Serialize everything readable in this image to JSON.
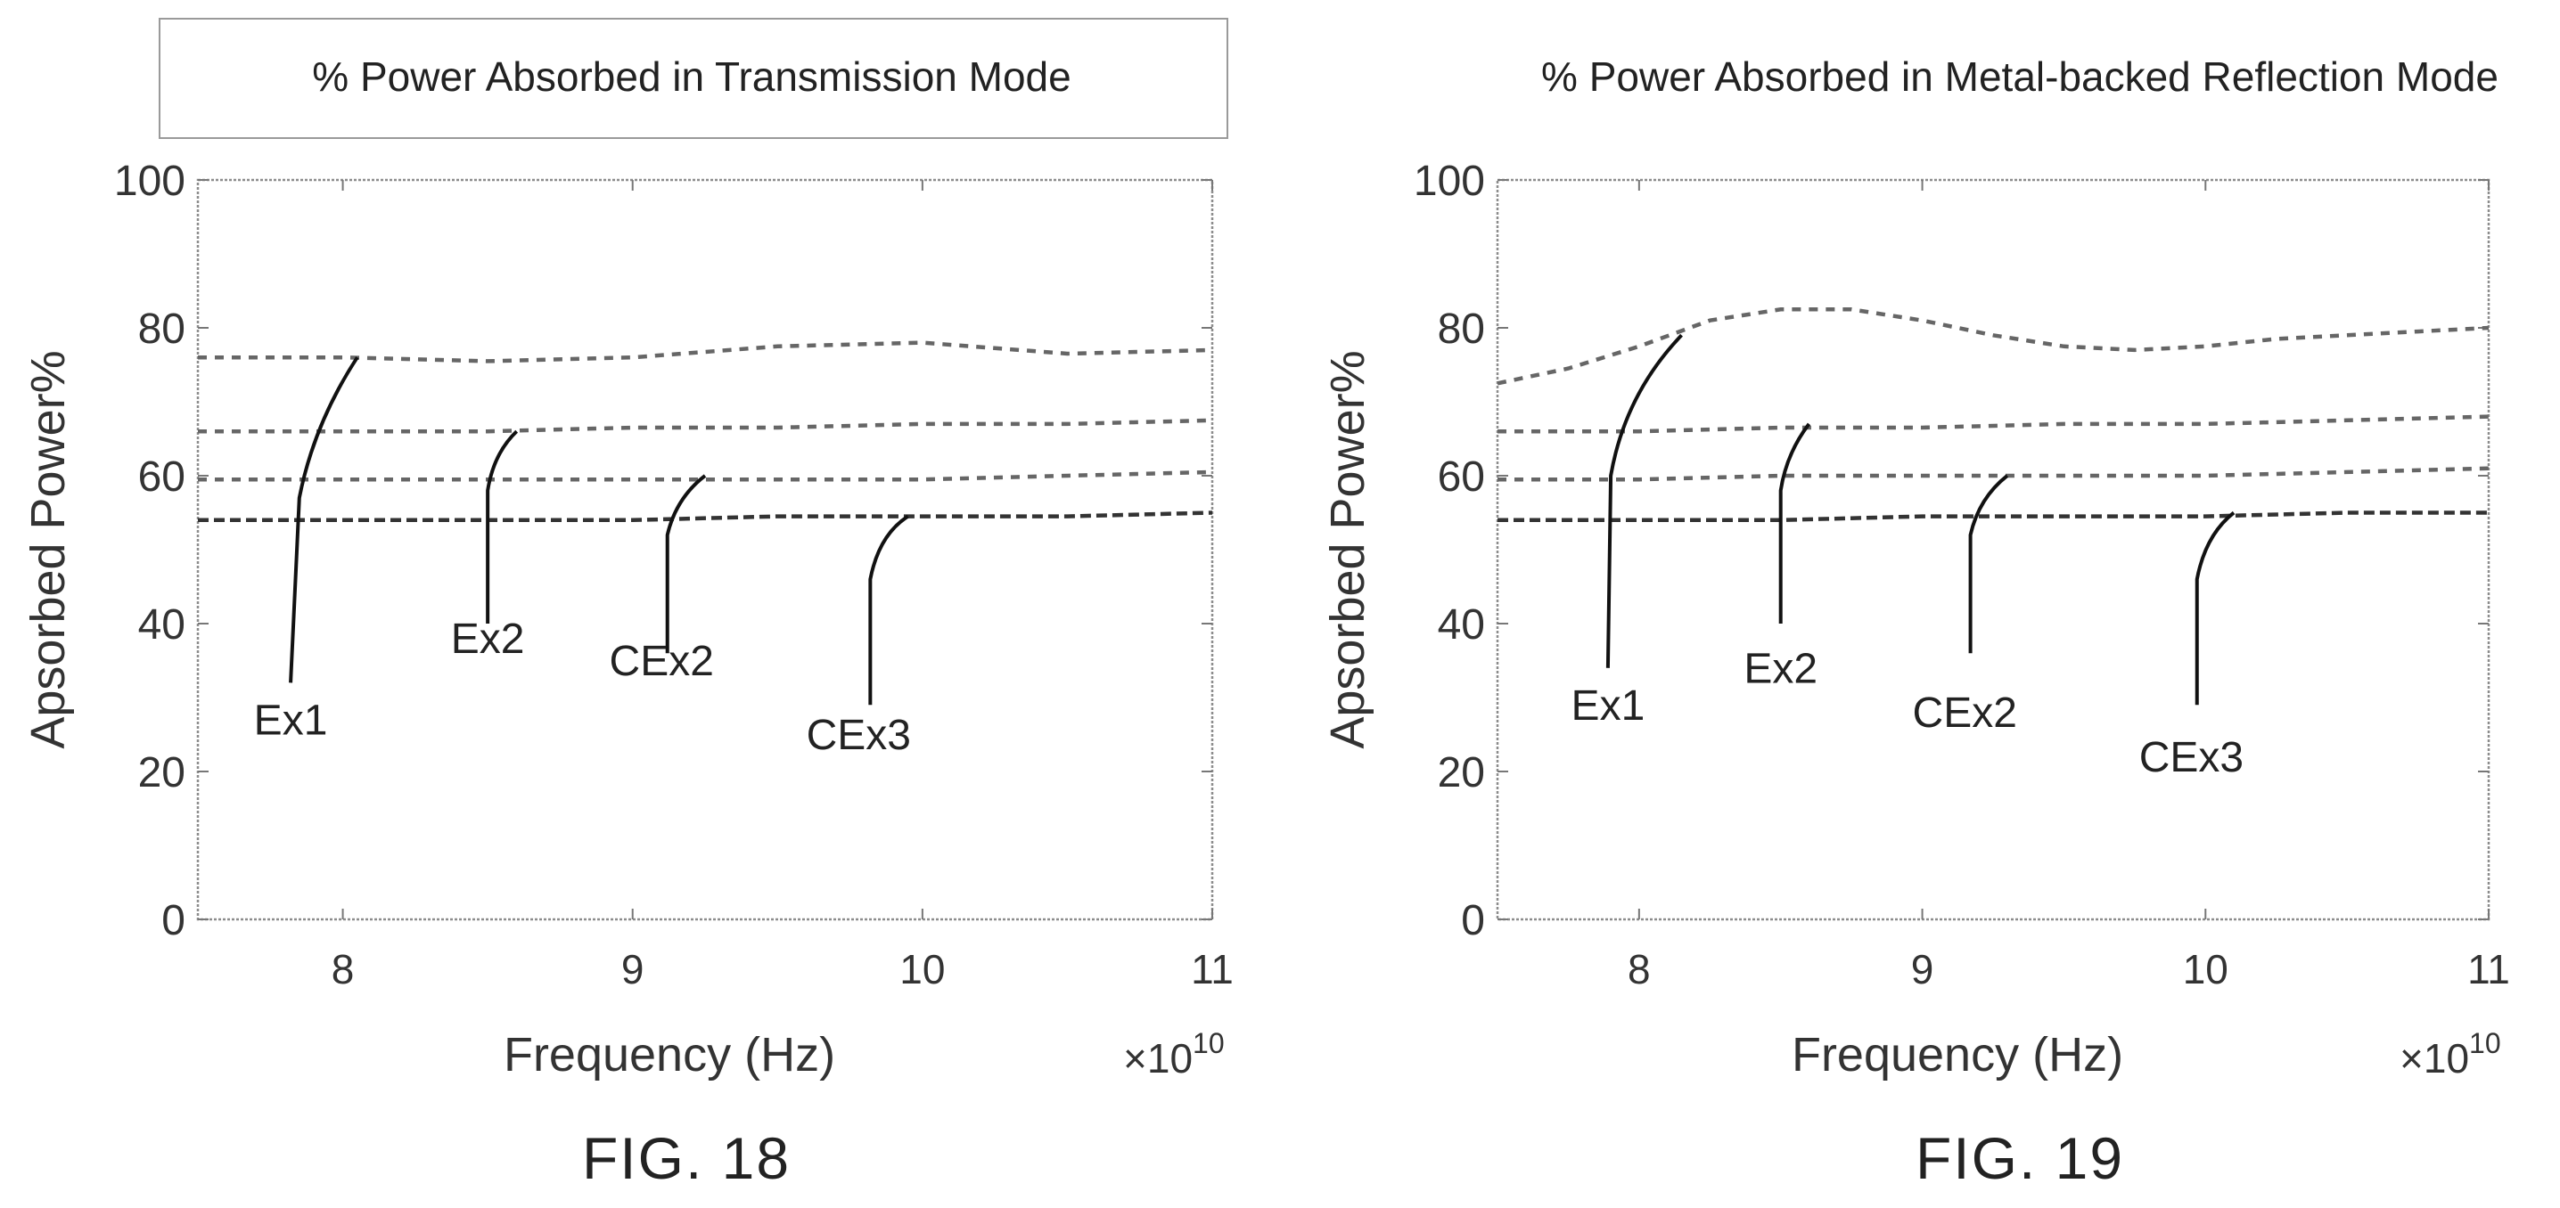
{
  "charts": [
    {
      "id": "fig18",
      "caption": "FIG. 18",
      "chart_data": {
        "type": "line",
        "title": "% Power Absorbed in Transmission Mode",
        "xlabel": "Frequency (Hz)",
        "ylabel": "Apsorbed Power%",
        "x_multiplier": "×10",
        "x_multiplier_exp": "10",
        "xlim": [
          7.5,
          11
        ],
        "ylim": [
          0,
          100
        ],
        "xticks": [
          8,
          9,
          10,
          11
        ],
        "yticks": [
          0,
          20,
          40,
          60,
          80,
          100
        ],
        "grid": false,
        "series": [
          {
            "name": "Ex1",
            "x": [
              7.5,
              8.0,
              8.5,
              9.0,
              9.5,
              10.0,
              10.5,
              11.0
            ],
            "values": [
              76,
              76,
              75.5,
              76,
              77.5,
              78,
              76.5,
              77
            ]
          },
          {
            "name": "Ex2",
            "x": [
              7.5,
              8.0,
              8.5,
              9.0,
              9.5,
              10.0,
              10.5,
              11.0
            ],
            "values": [
              66,
              66,
              66,
              66.5,
              66.5,
              67,
              67,
              67.5
            ]
          },
          {
            "name": "CEx2",
            "x": [
              7.5,
              8.0,
              8.5,
              9.0,
              9.5,
              10.0,
              10.5,
              11.0
            ],
            "values": [
              59.5,
              59.5,
              59.5,
              59.5,
              59.5,
              59.5,
              60,
              60.5
            ]
          },
          {
            "name": "CEx3",
            "x": [
              7.5,
              8.0,
              8.5,
              9.0,
              9.5,
              10.0,
              10.5,
              11.0
            ],
            "values": [
              54,
              54,
              54,
              54,
              54.5,
              54.5,
              54.5,
              55
            ]
          }
        ],
        "annotations": [
          {
            "text": "Ex1",
            "label_at": [
              7.82,
              25
            ],
            "leader": [
              [
                7.82,
                32
              ],
              [
                7.85,
                57
              ],
              [
                7.9,
                67
              ],
              [
                8.05,
                76
              ]
            ]
          },
          {
            "text": "Ex2",
            "label_at": [
              8.5,
              36
            ],
            "leader": [
              [
                8.5,
                40
              ],
              [
                8.5,
                58
              ],
              [
                8.52,
                63
              ],
              [
                8.6,
                66
              ]
            ]
          },
          {
            "text": "CEx2",
            "label_at": [
              9.1,
              33
            ],
            "leader": [
              [
                9.12,
                36
              ],
              [
                9.12,
                52
              ],
              [
                9.15,
                57
              ],
              [
                9.25,
                60
              ]
            ]
          },
          {
            "text": "CEx3",
            "label_at": [
              9.78,
              23
            ],
            "leader": [
              [
                9.82,
                29
              ],
              [
                9.82,
                46
              ],
              [
                9.85,
                52
              ],
              [
                9.95,
                54.5
              ]
            ]
          }
        ]
      }
    },
    {
      "id": "fig19",
      "caption": "FIG. 19",
      "chart_data": {
        "type": "line",
        "title": "% Power Absorbed in Metal-backed Reflection Mode",
        "xlabel": "Frequency (Hz)",
        "ylabel": "Apsorbed Power%",
        "x_multiplier": "×10",
        "x_multiplier_exp": "10",
        "xlim": [
          7.5,
          11
        ],
        "ylim": [
          0,
          100
        ],
        "xticks": [
          8,
          9,
          10,
          11
        ],
        "yticks": [
          0,
          20,
          40,
          60,
          80,
          100
        ],
        "grid": false,
        "series": [
          {
            "name": "Ex1",
            "x": [
              7.5,
              7.75,
              8.0,
              8.25,
              8.5,
              8.75,
              9.0,
              9.25,
              9.5,
              9.75,
              10.0,
              10.25,
              10.5,
              10.75,
              11.0
            ],
            "values": [
              72.5,
              74.5,
              77.5,
              81,
              82.5,
              82.5,
              81,
              79,
              77.5,
              77,
              77.5,
              78.5,
              79,
              79.5,
              80
            ]
          },
          {
            "name": "Ex2",
            "x": [
              7.5,
              8.0,
              8.5,
              9.0,
              9.5,
              10.0,
              10.5,
              11.0
            ],
            "values": [
              66,
              66,
              66.5,
              66.5,
              67,
              67,
              67.5,
              68
            ]
          },
          {
            "name": "CEx2",
            "x": [
              7.5,
              8.0,
              8.5,
              9.0,
              9.5,
              10.0,
              10.5,
              11.0
            ],
            "values": [
              59.5,
              59.5,
              60,
              60,
              60,
              60,
              60.5,
              61
            ]
          },
          {
            "name": "CEx3",
            "x": [
              7.5,
              8.0,
              8.5,
              9.0,
              9.5,
              10.0,
              10.5,
              11.0
            ],
            "values": [
              54,
              54,
              54,
              54.5,
              54.5,
              54.5,
              55,
              55
            ]
          }
        ],
        "annotations": [
          {
            "text": "Ex1",
            "label_at": [
              7.89,
              27
            ],
            "leader": [
              [
                7.89,
                34
              ],
              [
                7.9,
                60
              ],
              [
                7.95,
                71
              ],
              [
                8.15,
                79
              ]
            ]
          },
          {
            "text": "Ex2",
            "label_at": [
              8.5,
              32
            ],
            "leader": [
              [
                8.5,
                40
              ],
              [
                8.5,
                58
              ],
              [
                8.52,
                63
              ],
              [
                8.6,
                67
              ]
            ]
          },
          {
            "text": "CEx2",
            "label_at": [
              9.15,
              26
            ],
            "leader": [
              [
                9.17,
                36
              ],
              [
                9.17,
                52
              ],
              [
                9.2,
                57
              ],
              [
                9.3,
                60
              ]
            ]
          },
          {
            "text": "CEx3",
            "label_at": [
              9.95,
              20
            ],
            "leader": [
              [
                9.97,
                29
              ],
              [
                9.97,
                46
              ],
              [
                10.0,
                52
              ],
              [
                10.1,
                55
              ]
            ]
          }
        ]
      }
    }
  ]
}
